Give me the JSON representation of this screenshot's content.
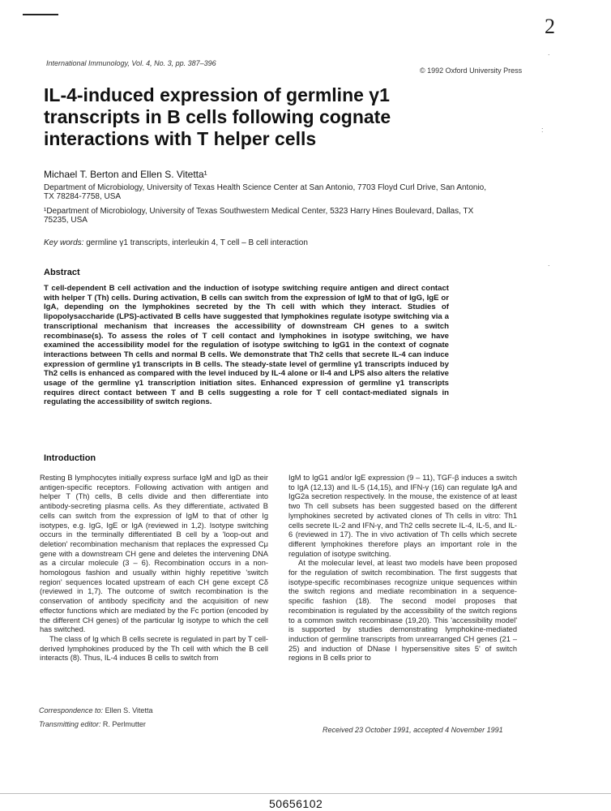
{
  "header": {
    "page_mark": "2",
    "journal": "International Immunology, Vol. 4, No. 3, pp. 387–396",
    "copyright": "© 1992 Oxford University Press"
  },
  "title": "IL-4-induced expression of germline γ1 transcripts in B cells following cognate interactions with T helper cells",
  "authors": {
    "names": "Michael T. Berton and Ellen S. Vitetta¹"
  },
  "affiliations": [
    "Department of Microbiology, University of Texas Health Science Center at San Antonio, 7703 Floyd Curl Drive, San Antonio, TX 78284-7758, USA",
    "¹Department of Microbiology, University of Texas Southwestern Medical Center, 5323 Harry Hines Boulevard, Dallas, TX 75235, USA"
  ],
  "keywords": {
    "label": "Key words:",
    "value": "germline γ1 transcripts, interleukin 4, T cell – B cell interaction"
  },
  "abstract": {
    "heading": "Abstract",
    "text": "T cell-dependent B cell activation and the induction of isotype switching require antigen and direct contact with helper T (Th) cells. During activation, B cells can switch from the expression of IgM to that of IgG, IgE or IgA, depending on the lymphokines secreted by the Th cell with which they interact. Studies of lipopolysaccharide (LPS)-activated B cells have suggested that lymphokines regulate isotype switching via a transcriptional mechanism that increases the accessibility of downstream CH genes to a switch recombinase(s). To assess the roles of T cell contact and lymphokines in isotype switching, we have examined the accessibility model for the regulation of isotype switching to IgG1 in the context of cognate interactions between Th cells and normal B cells. We demonstrate that Th2 cells that secrete IL-4 can induce expression of germline γ1 transcripts in B cells. The steady-state level of germline γ1 transcripts induced by Th2 cells is enhanced as compared with the level induced by IL-4 alone or Il-4 and LPS also alters the relative usage of the germline γ1 transcription initiation sites. Enhanced expression of germline γ1 transcripts requires direct contact between T and B cells suggesting a role for T cell contact-mediated signals in regulating the accessibility of switch regions."
  },
  "introduction": {
    "heading": "Introduction",
    "left_p1": "Resting B lymphocytes initially express surface IgM and IgD as their antigen-specific receptors. Following activation with antigen and helper T (Th) cells, B cells divide and then differentiate into antibody-secreting plasma cells. As they differentiate, activated B cells can switch from the expression of IgM to that of other Ig isotypes, e.g. IgG, IgE or IgA (reviewed in 1,2). Isotype switching occurs in the terminally differentiated B cell by a 'loop-out and deletion' recombination mechanism that replaces the expressed Cμ gene with a downstream CH gene and deletes the intervening DNA as a circular molecule (3 – 6). Recombination occurs in a non-homologous fashion and usually within highly repetitive 'switch region' sequences located upstream of each CH gene except Cδ (reviewed in 1,7). The outcome of switch recombination is the conservation of antibody specificity and the acquisition of new effector functions which are mediated by the Fc portion (encoded by the different CH genes) of the particular Ig isotype to which the cell has switched.",
    "left_p2": "The class of Ig which B cells secrete is regulated in part by T cell-derived lymphokines produced by the Th cell with which the B cell interacts (8). Thus, IL-4 induces B cells to switch from",
    "right_p1": "IgM to IgG1 and/or IgE expression (9 – 11), TGF-β induces a switch to IgA (12,13) and IL-5 (14,15), and IFN-γ (16) can regulate IgA and IgG2a secretion respectively. In the mouse, the existence of at least two Th cell subsets has been suggested based on the different lymphokines secreted by activated clones of Th cells in vitro: Th1 cells secrete IL-2 and IFN-γ, and Th2 cells secrete IL-4, IL-5, and IL-6 (reviewed in 17). The in vivo activation of Th cells which secrete different lymphokines therefore plays an important role in the regulation of isotype switching.",
    "right_p2": "At the molecular level, at least two models have been proposed for the regulation of switch recombination. The first suggests that isotype-specific recombinases recognize unique sequences within the switch regions and mediate recombination in a sequence-specific fashion (18). The second model proposes that recombination is regulated by the accessibility of the switch regions to a common switch recombinase (19,20). This 'accessibility model' is supported by studies demonstrating lymphokine-mediated induction of germline transcripts from unrearranged CH genes (21 – 25) and induction of DNase I hypersensitive sites 5' of switch regions in B cells prior to"
  },
  "footer": {
    "correspondence_label": "Correspondence to:",
    "correspondence_value": "Ellen S. Vitetta",
    "editor_label": "Transmitting editor:",
    "editor_value": "R. Perlmutter",
    "received": "Received 23 October 1991, accepted 4 November 1991",
    "doc_number": "50656102"
  }
}
